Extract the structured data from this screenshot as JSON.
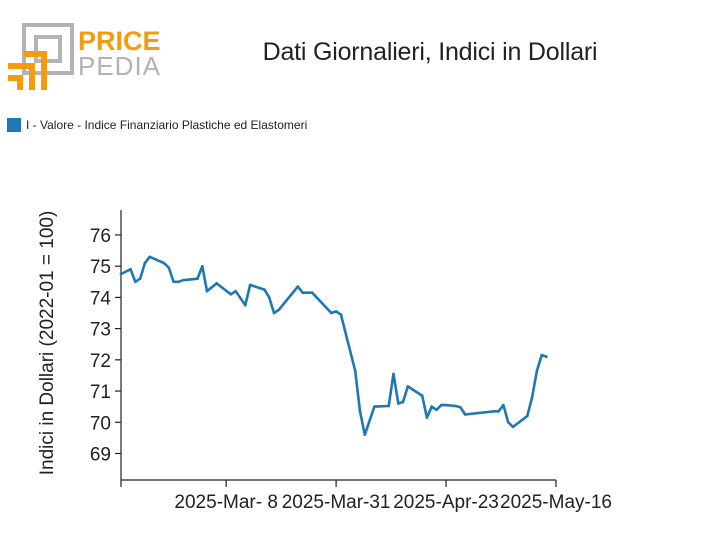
{
  "logo": {
    "brand_top": "PRICE",
    "brand_bottom": "PEDIA",
    "colors": {
      "orange": "#f39c12",
      "gray": "#b3b3b3"
    }
  },
  "chart_data": {
    "type": "line",
    "title": "Dati Giornalieri, Indici in Dollari",
    "ylabel": "Indici in Dollari (2022-01 = 100)",
    "xlabel": "",
    "ylim": [
      68.15,
      76.8
    ],
    "yticks": [
      69,
      70,
      71,
      72,
      73,
      74,
      75,
      76
    ],
    "xticks": [
      "2025-Mar- 8",
      "2025-Mar-31",
      "2025-Apr-23",
      "2025-May-16"
    ],
    "legend_position": "top-left",
    "grid": false,
    "series": [
      {
        "name": "I - Valore - Indice Finanziario Plastiche ed Elastomeri",
        "color": "#1f77b4",
        "points": [
          [
            "2025-02-14",
            74.75
          ],
          [
            "2025-02-16",
            74.9
          ],
          [
            "2025-02-17",
            74.5
          ],
          [
            "2025-02-18",
            74.6
          ],
          [
            "2025-02-19",
            75.1
          ],
          [
            "2025-02-20",
            75.3
          ],
          [
            "2025-02-23",
            75.1
          ],
          [
            "2025-02-24",
            74.95
          ],
          [
            "2025-02-25",
            74.5
          ],
          [
            "2025-02-26",
            74.5
          ],
          [
            "2025-02-27",
            74.55
          ],
          [
            "2025-03-02",
            74.6
          ],
          [
            "2025-03-03",
            75.0
          ],
          [
            "2025-03-04",
            74.2
          ],
          [
            "2025-03-06",
            74.45
          ],
          [
            "2025-03-09",
            74.1
          ],
          [
            "2025-03-10",
            74.2
          ],
          [
            "2025-03-12",
            73.75
          ],
          [
            "2025-03-13",
            74.4
          ],
          [
            "2025-03-16",
            74.25
          ],
          [
            "2025-03-17",
            74.0
          ],
          [
            "2025-03-18",
            73.5
          ],
          [
            "2025-03-19",
            73.6
          ],
          [
            "2025-03-23",
            74.35
          ],
          [
            "2025-03-24",
            74.15
          ],
          [
            "2025-03-25",
            74.15
          ],
          [
            "2025-03-26",
            74.15
          ],
          [
            "2025-03-30",
            73.5
          ],
          [
            "2025-03-31",
            73.55
          ],
          [
            "2025-04-01",
            73.45
          ],
          [
            "2025-04-04",
            71.65
          ],
          [
            "2025-04-05",
            70.35
          ],
          [
            "2025-04-06",
            69.6
          ],
          [
            "2025-04-08",
            70.5
          ],
          [
            "2025-04-11",
            70.52
          ],
          [
            "2025-04-12",
            71.55
          ],
          [
            "2025-04-13",
            70.6
          ],
          [
            "2025-04-14",
            70.65
          ],
          [
            "2025-04-15",
            71.15
          ],
          [
            "2025-04-18",
            70.85
          ],
          [
            "2025-04-19",
            70.15
          ],
          [
            "2025-04-20",
            70.5
          ],
          [
            "2025-04-21",
            70.4
          ],
          [
            "2025-04-22",
            70.55
          ],
          [
            "2025-04-23",
            70.55
          ],
          [
            "2025-04-25",
            70.52
          ],
          [
            "2025-04-26",
            70.48
          ],
          [
            "2025-04-27",
            70.25
          ],
          [
            "2025-05-03",
            70.35
          ],
          [
            "2025-05-04",
            70.35
          ],
          [
            "2025-05-05",
            70.55
          ],
          [
            "2025-05-06",
            70.0
          ],
          [
            "2025-05-07",
            69.85
          ],
          [
            "2025-05-10",
            70.2
          ],
          [
            "2025-05-11",
            70.8
          ],
          [
            "2025-05-12",
            71.65
          ],
          [
            "2025-05-13",
            72.15
          ],
          [
            "2025-05-14",
            72.1
          ]
        ]
      }
    ]
  }
}
